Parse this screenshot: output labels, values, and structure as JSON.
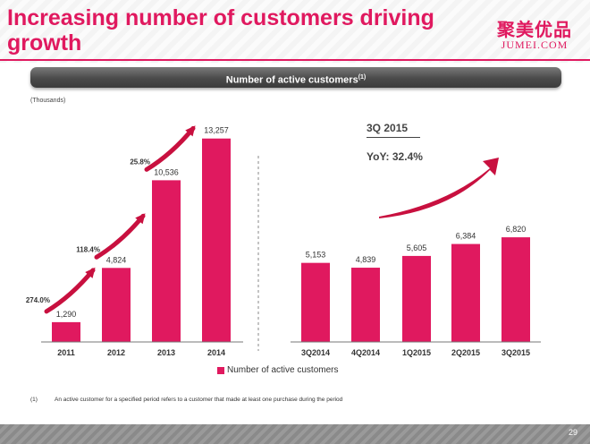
{
  "header": {
    "title": "Increasing number of customers driving growth",
    "logo_cn": "聚美优品",
    "logo_en": "JUMEI.COM"
  },
  "banner": {
    "title": "Number of active customers",
    "note_marker": "(1)"
  },
  "units": "(Thousands)",
  "quarter_callout": {
    "title": "3Q 2015",
    "yoy": "YoY:  32.4%"
  },
  "legend": {
    "label": "Number of active customers"
  },
  "footnote": {
    "number": "(1)",
    "text": "An active customer for a specified period refers to a customer that made at least one purchase during the period"
  },
  "page_number": "29",
  "colors": {
    "accent": "#e0195f",
    "banner": "#4a4a4a",
    "arrow": "#c8103f"
  },
  "chart_data": [
    {
      "type": "bar",
      "categories": [
        "2011",
        "2012",
        "2013",
        "2014"
      ],
      "values": [
        1290,
        4824,
        10536,
        13257
      ],
      "value_labels": [
        "1,290",
        "4,824",
        "10,536",
        "13,257"
      ],
      "growth_labels": [
        "274.0%",
        "118.4%",
        "25.8%"
      ],
      "ylabel": "(Thousands)",
      "ylim": [
        0,
        14000
      ],
      "grid": false
    },
    {
      "type": "bar",
      "categories": [
        "3Q2014",
        "4Q2014",
        "1Q2015",
        "2Q2015",
        "3Q2015"
      ],
      "values": [
        5153,
        4839,
        5605,
        6384,
        6820
      ],
      "value_labels": [
        "5,153",
        "4,839",
        "5,605",
        "6,384",
        "6,820"
      ],
      "ylim": [
        0,
        14000
      ],
      "grid": false
    }
  ]
}
